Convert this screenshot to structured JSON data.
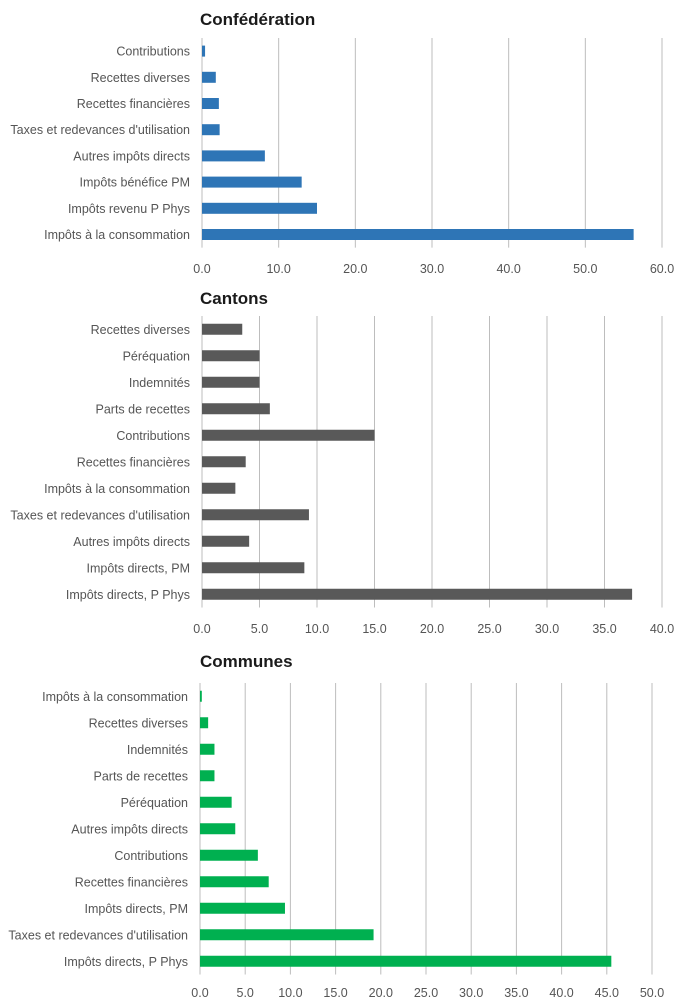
{
  "chart_data": [
    {
      "type": "bar",
      "orientation": "horizontal",
      "title": "Confédération",
      "categories": [
        "Contributions",
        "Recettes diverses",
        "Recettes financières",
        "Taxes et redevances d'utilisation",
        "Autres impôts directs",
        "Impôts bénéfice PM",
        "Impôts  revenu P Phys",
        "Impôts à la consommation"
      ],
      "values": [
        0.4,
        1.8,
        2.2,
        2.3,
        8.2,
        13.0,
        15.0,
        56.3
      ],
      "xlim": [
        0,
        60
      ],
      "xticks": [
        "0.0",
        "10.0",
        "20.0",
        "30.0",
        "40.0",
        "50.0",
        "60.0"
      ],
      "color": "#2e75b6",
      "grid": true,
      "legend": "none"
    },
    {
      "type": "bar",
      "orientation": "horizontal",
      "title": "Cantons",
      "categories": [
        "Recettes diverses",
        "Péréquation",
        "Indemnités",
        "Parts de recettes",
        "Contributions",
        "Recettes financières",
        "Impôts à la consommation",
        "Taxes et redevances d'utilisation",
        "Autres impôts directs",
        "Impôts directs, PM",
        "Impôts directs, P Phys"
      ],
      "values": [
        3.5,
        5.0,
        5.0,
        5.9,
        15.0,
        3.8,
        2.9,
        9.3,
        4.1,
        8.9,
        37.4
      ],
      "xlim": [
        0,
        40
      ],
      "xticks": [
        "0.0",
        "5.0",
        "10.0",
        "15.0",
        "20.0",
        "25.0",
        "30.0",
        "35.0",
        "40.0"
      ],
      "color": "#595959",
      "grid": true,
      "legend": "none"
    },
    {
      "type": "bar",
      "orientation": "horizontal",
      "title": "Communes",
      "categories": [
        "Impôts à la consommation",
        "Recettes diverses",
        "Indemnités",
        "Parts de recettes",
        "Péréquation",
        "Autres impôts directs",
        "Contributions",
        "Recettes financières",
        "Impôts directs, PM",
        "Taxes et redevances d'utilisation",
        "Impôts directs, P Phys"
      ],
      "values": [
        0.2,
        0.9,
        1.6,
        1.6,
        3.5,
        3.9,
        6.4,
        7.6,
        9.4,
        19.2,
        45.5
      ],
      "xlim": [
        0,
        50
      ],
      "xticks": [
        "0.0",
        "5.0",
        "10.0",
        "15.0",
        "20.0",
        "25.0",
        "30.0",
        "35.0",
        "40.0",
        "45.0",
        "50.0"
      ],
      "color": "#00b050",
      "grid": true,
      "legend": "none"
    }
  ]
}
